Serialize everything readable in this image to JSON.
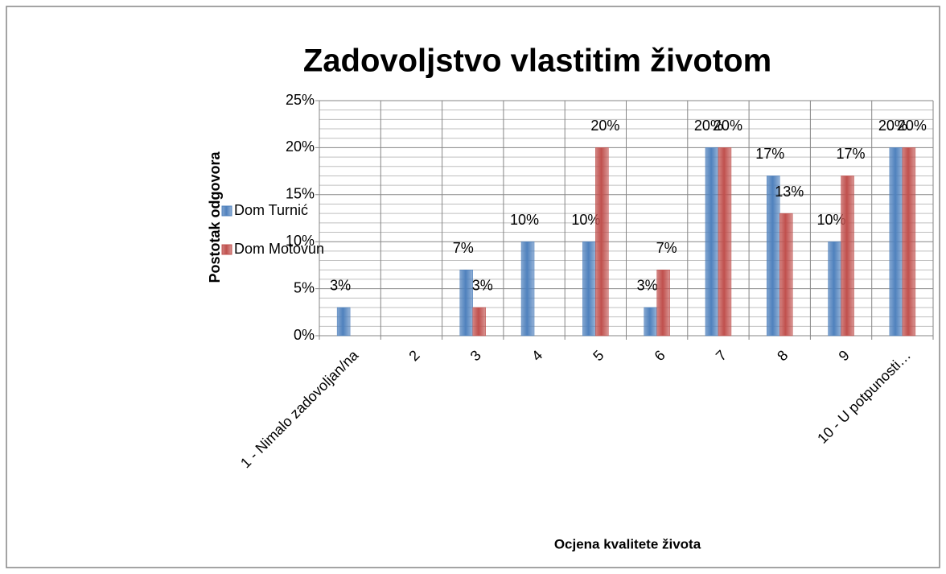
{
  "chart_data": {
    "type": "bar",
    "title": "Zadovoljstvo vlastitim životom",
    "x_label": "Ocjena kvalitete života",
    "y_label": "Postotak odgovora",
    "categories": [
      "1 - Nimalo zadovoljan/na",
      "2",
      "3",
      "4",
      "5",
      "6",
      "7",
      "8",
      "9",
      "10 - U potpunosti…"
    ],
    "series": [
      {
        "name": "Dom Turnić",
        "color": "#4f81bd",
        "values": [
          3,
          null,
          7,
          10,
          10,
          3,
          20,
          17,
          10,
          20
        ],
        "value_labels": [
          "3%",
          null,
          "7%",
          "10%",
          "10%",
          "3%",
          "20%",
          "17%",
          "10%",
          "20%"
        ]
      },
      {
        "name": "Dom Motovun",
        "color": "#c0504d",
        "values": [
          null,
          null,
          3,
          null,
          20,
          7,
          20,
          13,
          17,
          20
        ],
        "value_labels": [
          null,
          null,
          "3%",
          null,
          "20%",
          "7%",
          "20%",
          "13%",
          "17%",
          "20%"
        ]
      }
    ],
    "ylim": [
      0,
      25
    ],
    "yticks": [
      {
        "value": 0,
        "label": "0%"
      },
      {
        "value": 5,
        "label": "5%"
      },
      {
        "value": 10,
        "label": "10%"
      },
      {
        "value": 15,
        "label": "15%"
      },
      {
        "value": 20,
        "label": "20%"
      },
      {
        "value": 25,
        "label": "25%"
      }
    ],
    "minor_yticks": [
      1,
      2,
      3,
      4,
      6,
      7,
      8,
      9,
      11,
      12,
      13,
      14,
      16,
      17,
      18,
      19,
      21,
      22,
      23,
      24
    ],
    "grid": true,
    "legend": "left"
  }
}
